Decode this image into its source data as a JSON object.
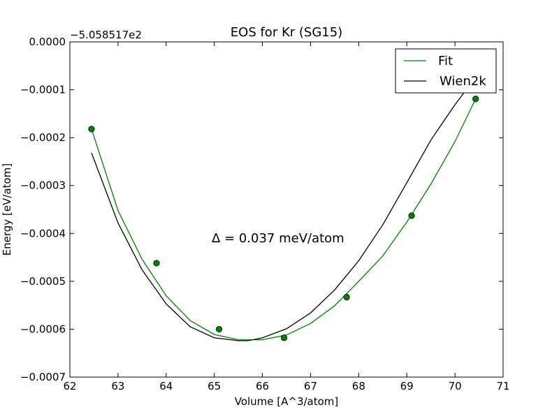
{
  "chart_data": {
    "type": "line",
    "title": "EOS for Kr (SG15)",
    "xlabel": "Volume [A^3/atom]",
    "ylabel": "Energy [eV/atom]",
    "y_offset_label": "−5.058517e2",
    "xlim": [
      62,
      71
    ],
    "ylim": [
      -0.0007,
      0.0
    ],
    "x_ticks": [
      62,
      63,
      64,
      65,
      66,
      67,
      68,
      69,
      70,
      71
    ],
    "x_tick_labels": [
      "62",
      "63",
      "64",
      "65",
      "66",
      "67",
      "68",
      "69",
      "70",
      "71"
    ],
    "y_ticks": [
      0.0,
      -0.0001,
      -0.0002,
      -0.0003,
      -0.0004,
      -0.0005,
      -0.0006,
      -0.0007
    ],
    "y_tick_labels": [
      "0.0000",
      "−0.0001",
      "−0.0002",
      "−0.0003",
      "−0.0004",
      "−0.0005",
      "−0.0006",
      "−0.0007"
    ],
    "grid": false,
    "legend_position": "top-right",
    "annotation": "Δ = 0.037 meV/atom",
    "points": {
      "x": [
        62.45,
        63.8,
        65.1,
        66.45,
        67.75,
        69.1,
        70.43
      ],
      "y": [
        -0.000182,
        -0.000462,
        -0.0006,
        -0.000618,
        -0.000533,
        -0.000363,
        -0.000119
      ],
      "color": "#008000"
    },
    "series": [
      {
        "name": "Fit",
        "color": "#008000",
        "x": [
          62.45,
          63.0,
          63.5,
          64.0,
          64.5,
          65.0,
          65.5,
          66.0,
          66.5,
          67.0,
          67.5,
          68.0,
          68.5,
          69.0,
          69.5,
          70.0,
          70.43
        ],
        "y": [
          -0.000182,
          -0.000352,
          -0.000454,
          -0.00053,
          -0.000582,
          -0.000611,
          -0.000622,
          -0.000622,
          -0.000612,
          -0.000588,
          -0.000551,
          -0.0005,
          -0.000447,
          -0.000376,
          -0.000297,
          -0.000208,
          -0.000119
        ]
      },
      {
        "name": "Wien2k",
        "color": "#000000",
        "x": [
          62.45,
          63.0,
          63.5,
          64.0,
          64.5,
          65.0,
          65.5,
          65.7,
          66.0,
          66.5,
          67.0,
          67.5,
          68.0,
          68.5,
          69.0,
          69.5,
          70.0,
          70.25
        ],
        "y": [
          -0.000232,
          -0.000378,
          -0.000476,
          -0.000547,
          -0.000595,
          -0.000618,
          -0.000624,
          -0.000624,
          -0.000618,
          -0.000599,
          -0.000566,
          -0.000518,
          -0.000457,
          -0.000382,
          -0.000294,
          -0.000205,
          -0.000131,
          -9.8e-05
        ]
      }
    ]
  }
}
